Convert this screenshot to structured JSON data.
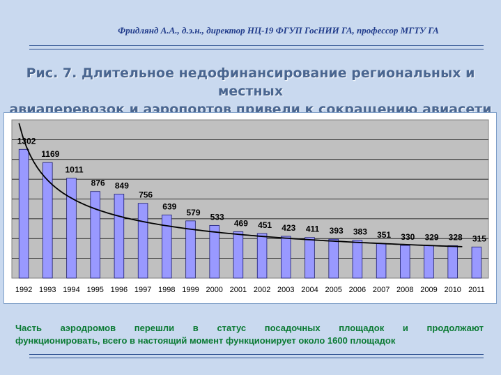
{
  "header": {
    "author": "Фридлянд А.А., д.э.н., директор  НЦ-19 ФГУП ГосНИИ ГА, профессор МГТУ  ГА"
  },
  "title": {
    "line1": "Рис. 7. Длительное недофинансирование региональных и местных",
    "line2": "авиаперевозок и аэропортов привели к сокращению авиасети"
  },
  "chart_data": {
    "type": "bar",
    "categories": [
      "1992",
      "1993",
      "1994",
      "1995",
      "1996",
      "1997",
      "1998",
      "1999",
      "2000",
      "2001",
      "2002",
      "2003",
      "2004",
      "2005",
      "2006",
      "2007",
      "2008",
      "2009",
      "2010",
      "2011"
    ],
    "values": [
      1302,
      1169,
      1011,
      876,
      849,
      756,
      639,
      579,
      533,
      469,
      451,
      423,
      411,
      393,
      383,
      351,
      330,
      329,
      328,
      315
    ],
    "ylim": [
      0,
      1600
    ],
    "grid": true,
    "trendline": true,
    "colors": {
      "bar": "#9999ff",
      "bar_stroke": "#1a1a6e",
      "plot_bg": "#c0c0c0",
      "trend": "#000000"
    }
  },
  "footer": {
    "line1": "Часть аэродромов перешли в статус посадочных площадок и продолжают",
    "line2": "функционировать, всего в настоящий момент функционирует около 1600 площадок"
  }
}
